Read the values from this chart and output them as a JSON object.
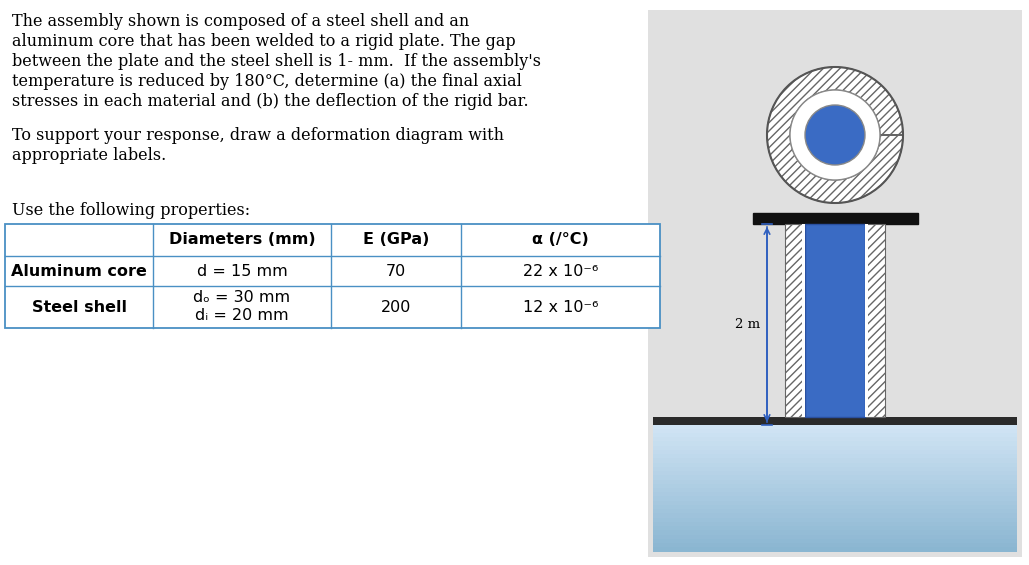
{
  "para1_lines": [
    "The assembly shown is composed of a steel shell and an",
    "aluminum core that has been welded to a rigid plate. The gap",
    "between the plate and the steel shell is 1- mm.  If the assembly's",
    "temperature is reduced by 180°C, determine (a) the final axial",
    "stresses in each material and (b) the deflection of the rigid bar."
  ],
  "para2_lines": [
    "To support your response, draw a deformation diagram with",
    "appropriate labels."
  ],
  "para3": "Use the following properties:",
  "table_headers": [
    "",
    "Diameters (mm)",
    "E (GPa)",
    "α (/°C)"
  ],
  "row1_label": "Aluminum core",
  "row1_diam": "d = 15 mm",
  "row1_E": "70",
  "row1_alpha": "22 x 10⁻⁶",
  "row2_label": "Steel shell",
  "row2_diam_top": "dₒ = 30 mm",
  "row2_diam_bot": "dᵢ = 20 mm",
  "row2_E": "200",
  "row2_alpha": "12 x 10⁻⁶",
  "length_label": "2 m",
  "diag_bg": "#e0e0e0",
  "al_core_color": "#3a6bc4",
  "al_core_dark": "#2a50a0",
  "base_top_color": "#c8d8e8",
  "base_mid_color": "#a0c0d8",
  "base_bot_color": "#80a8c8",
  "table_line_color": "#4a90c4",
  "text_fs": 11.5,
  "table_fs": 11.5
}
